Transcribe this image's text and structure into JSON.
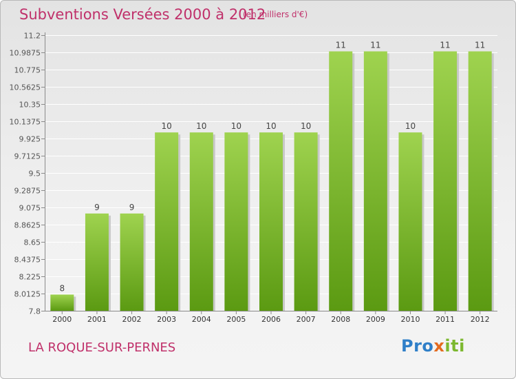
{
  "header": {
    "title": "Subventions Versées 2000 à 2012",
    "unit": "(en milliers d'€)"
  },
  "footer": {
    "commune": "LA ROQUE-SUR-PERNES",
    "logo_parts": [
      "Pro",
      "x",
      "iti"
    ]
  },
  "colors": {
    "bar_light": "#9fd34f",
    "bar_dark": "#5b9a12",
    "title": "#c0306a"
  },
  "chart_data": {
    "type": "bar",
    "title": "Subventions Versées 2000 à 2012",
    "categories": [
      "2000",
      "2001",
      "2002",
      "2003",
      "2004",
      "2005",
      "2006",
      "2007",
      "2008",
      "2009",
      "2010",
      "2011",
      "2012"
    ],
    "values": [
      8,
      9,
      9,
      10,
      10,
      10,
      10,
      10,
      11,
      11,
      10,
      11,
      11
    ],
    "data_labels": [
      "8",
      "9",
      "9",
      "10",
      "10",
      "10",
      "10",
      "10",
      "11",
      "11",
      "10",
      "11",
      "11"
    ],
    "ylim": [
      7.8,
      11.2
    ],
    "yticks": [
      "7.8",
      "8.0125",
      "8.225",
      "8.4375",
      "8.65",
      "8.8625",
      "9.075",
      "9.2875",
      "9.5",
      "9.7125",
      "9.925",
      "10.1375",
      "10.35",
      "10.5625",
      "10.775",
      "10.9875",
      "11.2"
    ],
    "ytick_values": [
      7.8,
      8.0125,
      8.225,
      8.4375,
      8.65,
      8.8625,
      9.075,
      9.2875,
      9.5,
      9.7125,
      9.925,
      10.1375,
      10.35,
      10.5625,
      10.775,
      10.9875,
      11.2
    ],
    "grid": true,
    "legend": "none"
  }
}
